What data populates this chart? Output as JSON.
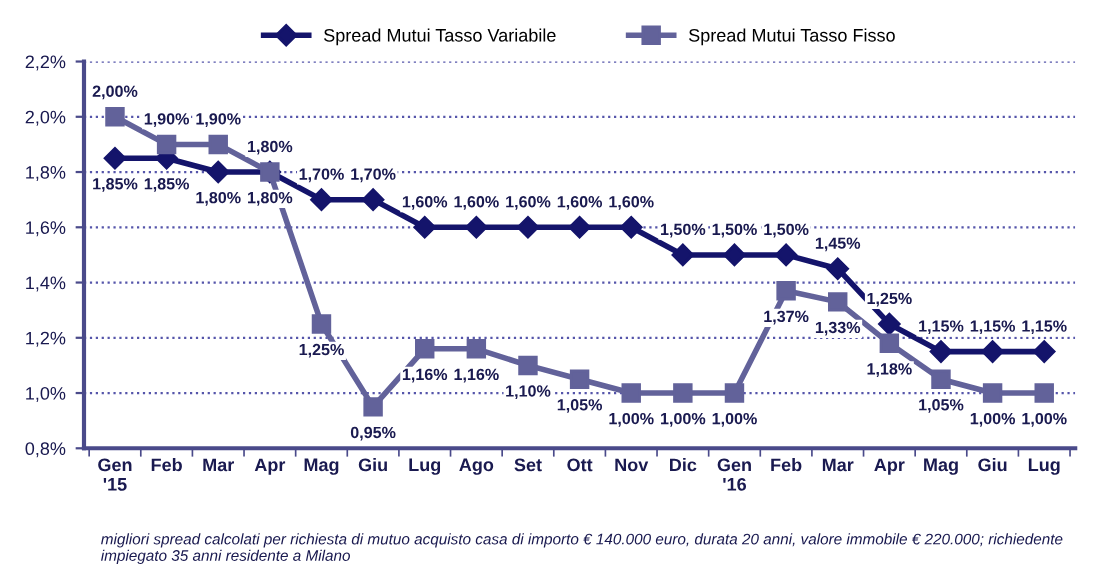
{
  "chart_data": {
    "type": "line",
    "categories": [
      "Gen\n'15",
      "Feb",
      "Mar",
      "Apr",
      "Mag",
      "Giu",
      "Lug",
      "Ago",
      "Set",
      "Ott",
      "Nov",
      "Dic",
      "Gen\n'16",
      "Feb",
      "Mar",
      "Apr",
      "Mag",
      "Giu",
      "Lug"
    ],
    "series": [
      {
        "name": "Spread Mutui Tasso Variabile",
        "color": "#14146b",
        "marker": "diamond",
        "values": [
          1.85,
          1.85,
          1.8,
          1.8,
          1.7,
          1.7,
          1.6,
          1.6,
          1.6,
          1.6,
          1.6,
          1.5,
          1.5,
          1.5,
          1.45,
          1.25,
          1.15,
          1.15,
          1.15
        ],
        "value_labels": [
          "1,85%",
          "1,85%",
          "1,80%",
          "1,80%",
          "1,70%",
          "1,70%",
          "1,60%",
          "1,60%",
          "1,60%",
          "1,60%",
          "1,60%",
          "1,50%",
          "1,50%",
          "1,50%",
          "1,45%",
          "1,25%",
          "1,15%",
          "1,15%",
          "1,15%"
        ]
      },
      {
        "name": "Spread Mutui Tasso Fisso",
        "color": "#62629a",
        "marker": "square",
        "values": [
          2.0,
          1.9,
          1.9,
          1.8,
          1.25,
          0.95,
          1.16,
          1.16,
          1.1,
          1.05,
          1.0,
          1.0,
          1.0,
          1.37,
          1.33,
          1.18,
          1.05,
          1.0,
          1.0
        ],
        "value_labels": [
          "2,00%",
          "1,90%",
          "1,90%",
          "1,80%",
          "1,25%",
          "0,95%",
          "1,16%",
          "1,16%",
          "1,10%",
          "1,05%",
          "1,00%",
          "1,00%",
          "1,00%",
          "1,37%",
          "1,33%",
          "1,18%",
          "1,05%",
          "1,00%",
          "1,00%"
        ]
      }
    ],
    "ylim": [
      0.8,
      2.2
    ],
    "yticks": [
      {
        "value": 0.8,
        "label": "0,8%"
      },
      {
        "value": 1.0,
        "label": "1,0%"
      },
      {
        "value": 1.2,
        "label": "1,2%"
      },
      {
        "value": 1.4,
        "label": "1,4%"
      },
      {
        "value": 1.6,
        "label": "1,6%"
      },
      {
        "value": 1.8,
        "label": "1,8%"
      },
      {
        "value": 2.0,
        "label": "2,0%"
      },
      {
        "value": 2.2,
        "label": "2,2%"
      }
    ],
    "grid": "y",
    "legend": "top",
    "line_style": "solid",
    "annotations": [
      "migliori spread calcolati per richiesta di mutuo acquisto casa di importo € 140.000 euro, durata 20 anni, valore immobile € 220.000; richiedente impiegato 35 anni residente a Milano"
    ]
  }
}
